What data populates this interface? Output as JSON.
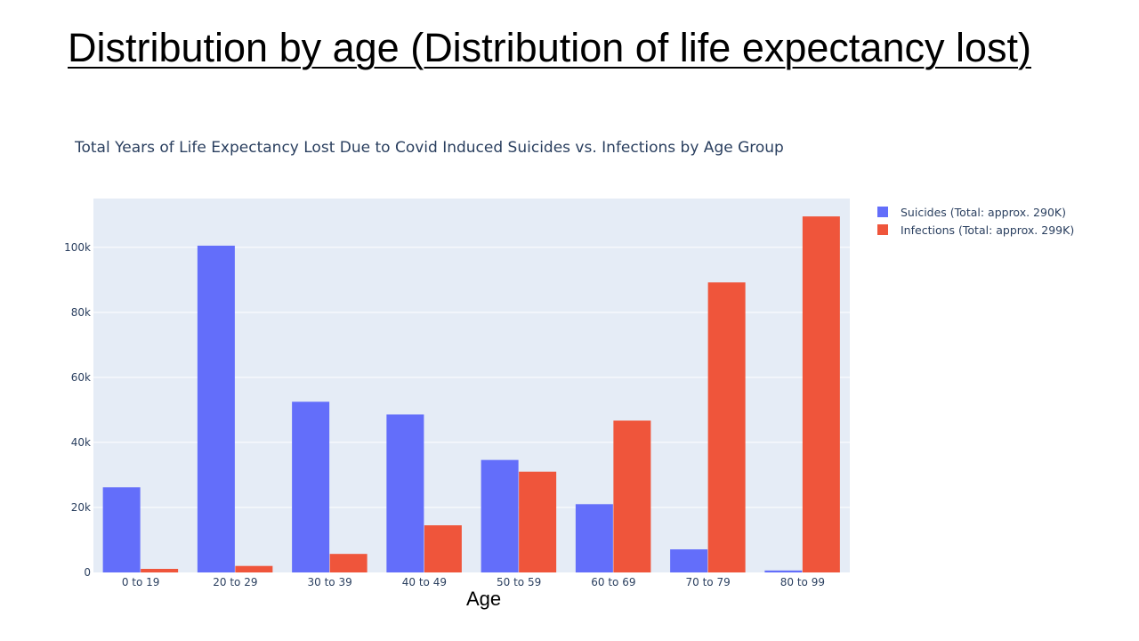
{
  "slide": {
    "title": "Distribution by age (Distribution of life expectancy lost)"
  },
  "chart_data": {
    "type": "bar",
    "title": "Total Years of Life Expectancy Lost Due to Covid Induced Suicides vs. Infections by Age Group",
    "xlabel": "Age",
    "ylabel": "",
    "categories": [
      "0 to 19",
      "20 to 29",
      "30 to 39",
      "40 to 49",
      "50 to 59",
      "60 to 69",
      "70 to 79",
      "80 to 99"
    ],
    "series": [
      {
        "name": "Suicides (Total: approx. 290K)",
        "color": "#636efa",
        "values": [
          26200,
          100500,
          52500,
          48600,
          34600,
          21000,
          7100,
          600
        ]
      },
      {
        "name": "Infections (Total: approx. 299K)",
        "color": "#ef553b",
        "values": [
          1100,
          2000,
          5700,
          14500,
          31000,
          46700,
          89200,
          109500
        ]
      }
    ],
    "ylim": [
      0,
      115000
    ],
    "yticks": [
      0,
      20000,
      40000,
      60000,
      80000,
      100000
    ],
    "ytick_labels": [
      "0",
      "20k",
      "40k",
      "60k",
      "80k",
      "100k"
    ],
    "grid": true,
    "legend_position": "top-right",
    "plot_background": "#e5ecf6"
  }
}
